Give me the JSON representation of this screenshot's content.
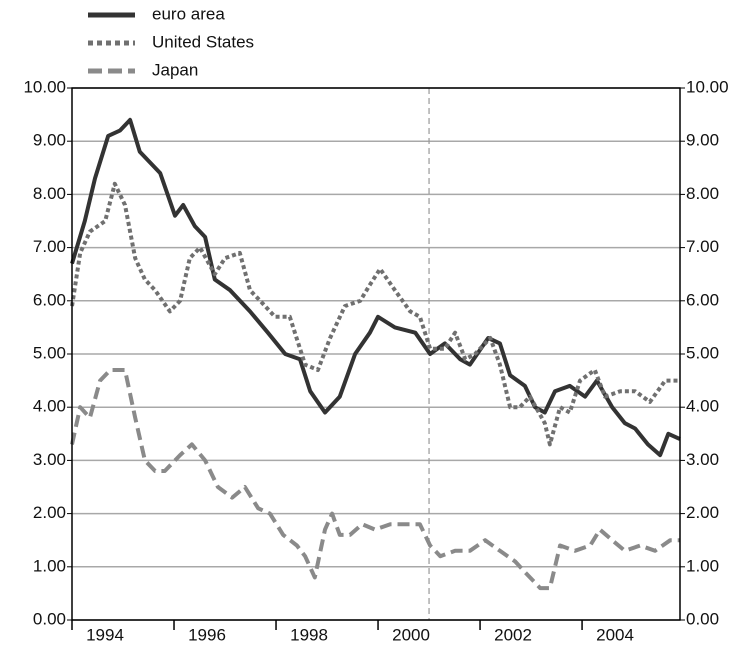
{
  "chart_data": {
    "type": "line",
    "xlim": [
      1994,
      2005.92
    ],
    "xticks": [
      1994,
      1996,
      1998,
      2000,
      2002,
      2004
    ],
    "ylim": [
      0,
      10
    ],
    "yticks": [
      {
        "value": 0,
        "label": "0.00"
      },
      {
        "value": 1,
        "label": "1.00"
      },
      {
        "value": 2,
        "label": "2.00"
      },
      {
        "value": 3,
        "label": "3.00"
      },
      {
        "value": 4,
        "label": "4.00"
      },
      {
        "value": 5,
        "label": "5.00"
      },
      {
        "value": 6,
        "label": "6.00"
      },
      {
        "value": 7,
        "label": "7.00"
      },
      {
        "value": 8,
        "label": "8.00"
      },
      {
        "value": 9,
        "label": "9.00"
      },
      {
        "value": 10,
        "label": "10.00"
      }
    ],
    "y2lim": [
      0,
      10
    ],
    "y2ticks": [
      {
        "value": 0,
        "label": "0.00"
      },
      {
        "value": 1,
        "label": "1.00"
      },
      {
        "value": 2,
        "label": "2.00"
      },
      {
        "value": 3,
        "label": "3.00"
      },
      {
        "value": 4,
        "label": "4.00"
      },
      {
        "value": 5,
        "label": "5.00"
      },
      {
        "value": 6,
        "label": "6.00"
      },
      {
        "value": 7,
        "label": "7.00"
      },
      {
        "value": 8,
        "label": "8.00"
      },
      {
        "value": 9,
        "label": "9.00"
      },
      {
        "value": 10,
        "label": "10.00"
      }
    ],
    "grid": true,
    "legend": "top-left",
    "reference_line_x": 2001,
    "series": [
      {
        "name": "euro area",
        "color": "#333333",
        "style": "solid",
        "x": [
          1994.0,
          1994.25,
          1994.45,
          1994.71,
          1994.94,
          1995.14,
          1995.33,
          1995.73,
          1996.02,
          1996.18,
          1996.41,
          1996.61,
          1996.8,
          1997.1,
          1997.49,
          1997.84,
          1998.18,
          1998.47,
          1998.67,
          1998.96,
          1999.25,
          1999.55,
          1999.84,
          2000.0,
          2000.33,
          2000.73,
          2001.02,
          2001.31,
          2001.61,
          2001.8,
          2002.16,
          2002.39,
          2002.59,
          2002.88,
          2003.08,
          2003.27,
          2003.47,
          2003.76,
          2004.06,
          2004.29,
          2004.59,
          2004.84,
          2005.04,
          2005.29,
          2005.53,
          2005.69,
          2005.92
        ],
        "values": [
          6.7,
          7.5,
          8.3,
          9.1,
          9.2,
          9.4,
          8.8,
          8.4,
          7.6,
          7.8,
          7.4,
          7.2,
          6.4,
          6.2,
          5.8,
          5.4,
          5.0,
          4.9,
          4.3,
          3.9,
          4.2,
          5.0,
          5.4,
          5.7,
          5.5,
          5.4,
          5.0,
          5.2,
          4.9,
          4.8,
          5.3,
          5.2,
          4.6,
          4.4,
          4.0,
          3.9,
          4.3,
          4.4,
          4.2,
          4.5,
          4.0,
          3.7,
          3.6,
          3.3,
          3.1,
          3.5,
          3.4
        ]
      },
      {
        "name": "United States",
        "color": "#707070",
        "style": "dotted",
        "x": [
          1994.0,
          1994.16,
          1994.35,
          1994.65,
          1994.84,
          1995.04,
          1995.24,
          1995.43,
          1995.63,
          1995.92,
          1996.12,
          1996.31,
          1996.51,
          1996.8,
          1997.0,
          1997.29,
          1997.49,
          1997.69,
          1997.98,
          1998.27,
          1998.57,
          1998.82,
          1999.06,
          1999.35,
          1999.65,
          1999.84,
          2000.04,
          2000.33,
          2000.63,
          2000.82,
          2001.02,
          2001.31,
          2001.51,
          2001.71,
          2001.9,
          2002.2,
          2002.39,
          2002.59,
          2002.78,
          2002.98,
          2003.27,
          2003.37,
          2003.57,
          2003.76,
          2003.96,
          2004.25,
          2004.45,
          2004.75,
          2005.04,
          2005.33,
          2005.63,
          2005.92
        ],
        "values": [
          5.9,
          6.9,
          7.3,
          7.5,
          8.2,
          7.8,
          6.8,
          6.4,
          6.2,
          5.8,
          6.0,
          6.8,
          7.0,
          6.5,
          6.8,
          6.9,
          6.2,
          6.0,
          5.7,
          5.7,
          4.8,
          4.7,
          5.3,
          5.9,
          6.0,
          6.3,
          6.6,
          6.2,
          5.8,
          5.7,
          5.1,
          5.1,
          5.4,
          4.9,
          5.0,
          5.3,
          4.8,
          4.0,
          4.0,
          4.2,
          3.7,
          3.3,
          4.0,
          3.9,
          4.5,
          4.7,
          4.2,
          4.3,
          4.3,
          4.1,
          4.5,
          4.5
        ]
      },
      {
        "name": "Japan",
        "color": "#8a8a8a",
        "style": "dashed",
        "x": [
          1994.0,
          1994.16,
          1994.35,
          1994.55,
          1994.75,
          1995.04,
          1995.24,
          1995.43,
          1995.63,
          1995.82,
          1996.12,
          1996.35,
          1996.61,
          1996.86,
          1997.14,
          1997.39,
          1997.65,
          1997.88,
          1998.14,
          1998.41,
          1998.57,
          1998.76,
          1998.96,
          1999.1,
          1999.25,
          1999.45,
          1999.69,
          1999.94,
          2000.24,
          2000.53,
          2000.82,
          2001.02,
          2001.22,
          2001.51,
          2001.8,
          2002.1,
          2002.39,
          2002.69,
          2002.88,
          2003.18,
          2003.37,
          2003.57,
          2003.86,
          2004.16,
          2004.35,
          2004.59,
          2004.84,
          2005.14,
          2005.43,
          2005.73,
          2005.92
        ],
        "values": [
          3.3,
          4.0,
          3.8,
          4.5,
          4.7,
          4.7,
          3.8,
          3.0,
          2.8,
          2.8,
          3.1,
          3.3,
          3.0,
          2.5,
          2.3,
          2.5,
          2.1,
          2.0,
          1.6,
          1.4,
          1.2,
          0.8,
          1.7,
          2.0,
          1.6,
          1.6,
          1.8,
          1.7,
          1.8,
          1.8,
          1.8,
          1.4,
          1.2,
          1.3,
          1.3,
          1.5,
          1.3,
          1.1,
          0.9,
          0.6,
          0.6,
          1.4,
          1.3,
          1.4,
          1.7,
          1.5,
          1.3,
          1.4,
          1.3,
          1.5,
          1.5
        ]
      }
    ]
  }
}
